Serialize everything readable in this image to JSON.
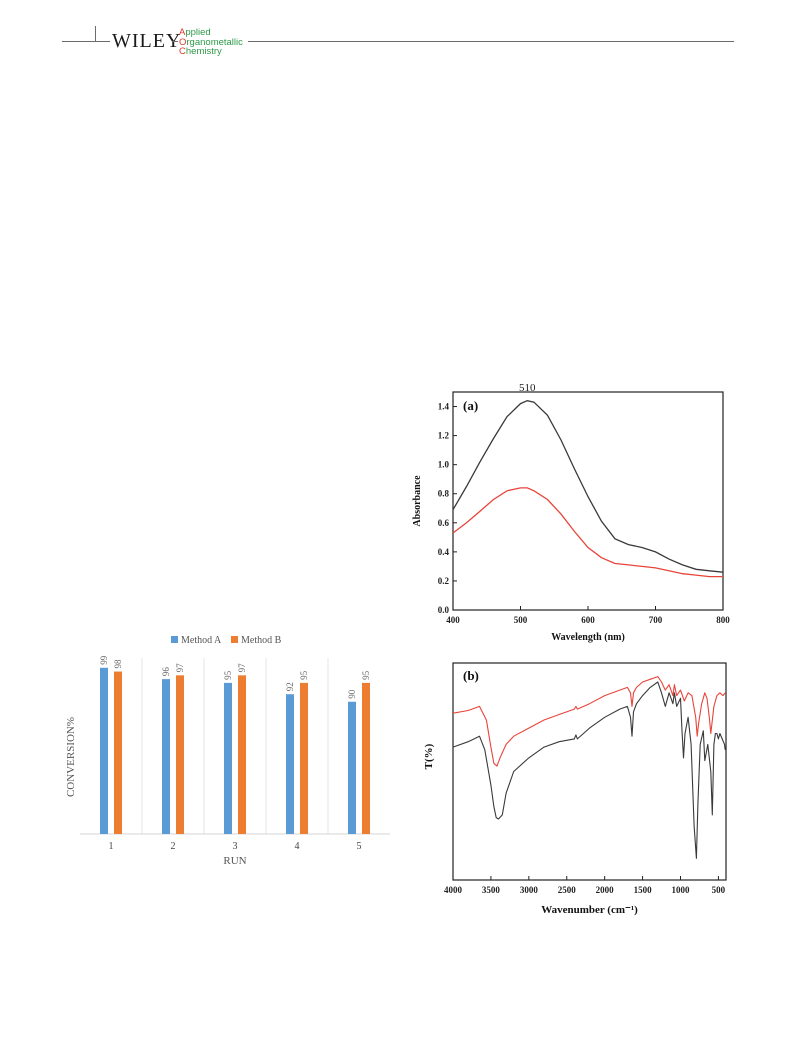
{
  "header": {
    "publisher": "WILEY",
    "journal_lines": [
      "Applied",
      "Organometallic",
      "Chemistry"
    ]
  },
  "colors": {
    "method_a": "#5b9bd5",
    "method_b": "#ed7d31",
    "black_trace": "#3a3a3a",
    "red_trace": "#e8443a",
    "journal_green": "#2e9a48",
    "journal_red": "#d33a2c"
  },
  "chart_data": [
    {
      "type": "bar",
      "legend_position": "top",
      "categories": [
        "1",
        "2",
        "3",
        "4",
        "5"
      ],
      "series": [
        {
          "name": "Method A",
          "values": [
            99,
            96,
            95,
            92,
            90
          ]
        },
        {
          "name": "Method B",
          "values": [
            98,
            97,
            97,
            95,
            95
          ]
        }
      ],
      "xlabel": "RUN",
      "ylabel": "CONVERSION%",
      "ylim": [
        55,
        100
      ],
      "grid": "vertical separators"
    },
    {
      "type": "line",
      "panel_label": "(a)",
      "annotation": "510",
      "xlabel": "Wavelength (nm)",
      "ylabel": "Absorbance",
      "xlim": [
        400,
        800
      ],
      "ylim": [
        0.0,
        1.5
      ],
      "xticks": [
        "400",
        "500",
        "600",
        "700",
        "800"
      ],
      "yticks": [
        "0.0",
        "0.2",
        "0.4",
        "0.6",
        "0.8",
        "1.0",
        "1.2",
        "1.4"
      ],
      "series": [
        {
          "color": "black",
          "x": [
            400,
            420,
            440,
            460,
            480,
            500,
            510,
            520,
            540,
            560,
            580,
            600,
            620,
            640,
            660,
            680,
            700,
            720,
            740,
            760,
            780,
            800
          ],
          "y": [
            0.69,
            0.85,
            1.02,
            1.18,
            1.33,
            1.42,
            1.44,
            1.43,
            1.34,
            1.17,
            0.97,
            0.78,
            0.61,
            0.49,
            0.45,
            0.43,
            0.4,
            0.35,
            0.31,
            0.28,
            0.27,
            0.26
          ]
        },
        {
          "color": "red",
          "x": [
            400,
            420,
            440,
            460,
            480,
            500,
            510,
            520,
            540,
            560,
            580,
            600,
            620,
            640,
            660,
            680,
            700,
            720,
            740,
            760,
            780,
            800
          ],
          "y": [
            0.53,
            0.6,
            0.68,
            0.76,
            0.82,
            0.84,
            0.84,
            0.82,
            0.76,
            0.66,
            0.54,
            0.43,
            0.36,
            0.32,
            0.31,
            0.3,
            0.29,
            0.27,
            0.25,
            0.24,
            0.23,
            0.23
          ]
        }
      ]
    },
    {
      "type": "line",
      "panel_label": "(b)",
      "xlabel": "Wavenumber (cm⁻¹)",
      "ylabel": "T(%)",
      "xlim": [
        4000,
        400
      ],
      "xticks": [
        "4000",
        "3500",
        "3000",
        "2500",
        "2000",
        "1500",
        "1000",
        "500"
      ],
      "series": [
        {
          "color": "red",
          "x": [
            4000,
            3800,
            3650,
            3560,
            3500,
            3460,
            3420,
            3380,
            3300,
            3200,
            3000,
            2800,
            2600,
            2400,
            2380,
            2360,
            2200,
            2000,
            1800,
            1700,
            1660,
            1640,
            1620,
            1580,
            1500,
            1400,
            1300,
            1250,
            1200,
            1150,
            1100,
            1080,
            1050,
            1000,
            950,
            900,
            850,
            800,
            780,
            760,
            720,
            680,
            650,
            620,
            600,
            560,
            520,
            480,
            440,
            410
          ],
          "y": [
            81.5,
            82.5,
            84,
            79,
            69,
            63,
            62,
            65,
            70,
            73,
            76,
            79,
            81,
            83,
            84,
            83,
            85,
            88,
            90,
            91,
            89,
            84,
            89,
            91,
            93,
            94,
            95,
            93,
            90,
            92,
            88,
            92,
            88,
            90,
            86,
            89,
            88,
            80,
            73,
            78,
            85,
            89,
            87,
            80,
            74,
            84,
            88,
            89,
            88,
            89
          ]
        },
        {
          "color": "black",
          "x": [
            4000,
            3800,
            3650,
            3580,
            3500,
            3460,
            3430,
            3400,
            3350,
            3300,
            3200,
            3000,
            2800,
            2600,
            2400,
            2380,
            2360,
            2200,
            2000,
            1800,
            1700,
            1660,
            1640,
            1620,
            1580,
            1500,
            1400,
            1300,
            1250,
            1200,
            1150,
            1100,
            1080,
            1050,
            1000,
            980,
            960,
            940,
            900,
            860,
            820,
            790,
            770,
            740,
            700,
            680,
            640,
            600,
            580,
            560,
            540,
            520,
            500,
            480,
            450,
            420,
            410
          ],
          "y": [
            69,
            71,
            73,
            68,
            55,
            47,
            43,
            42.5,
            44,
            52,
            60,
            65,
            69,
            71,
            72,
            73.5,
            72,
            76,
            80,
            83,
            84,
            80,
            73,
            82,
            85,
            88,
            91,
            93,
            89,
            84,
            89,
            85,
            89,
            84,
            87,
            75,
            65,
            74,
            80,
            70,
            40,
            28,
            48,
            70,
            75,
            64,
            70,
            60,
            44,
            70,
            74,
            74,
            72,
            74,
            72,
            70,
            68
          ]
        }
      ]
    }
  ]
}
